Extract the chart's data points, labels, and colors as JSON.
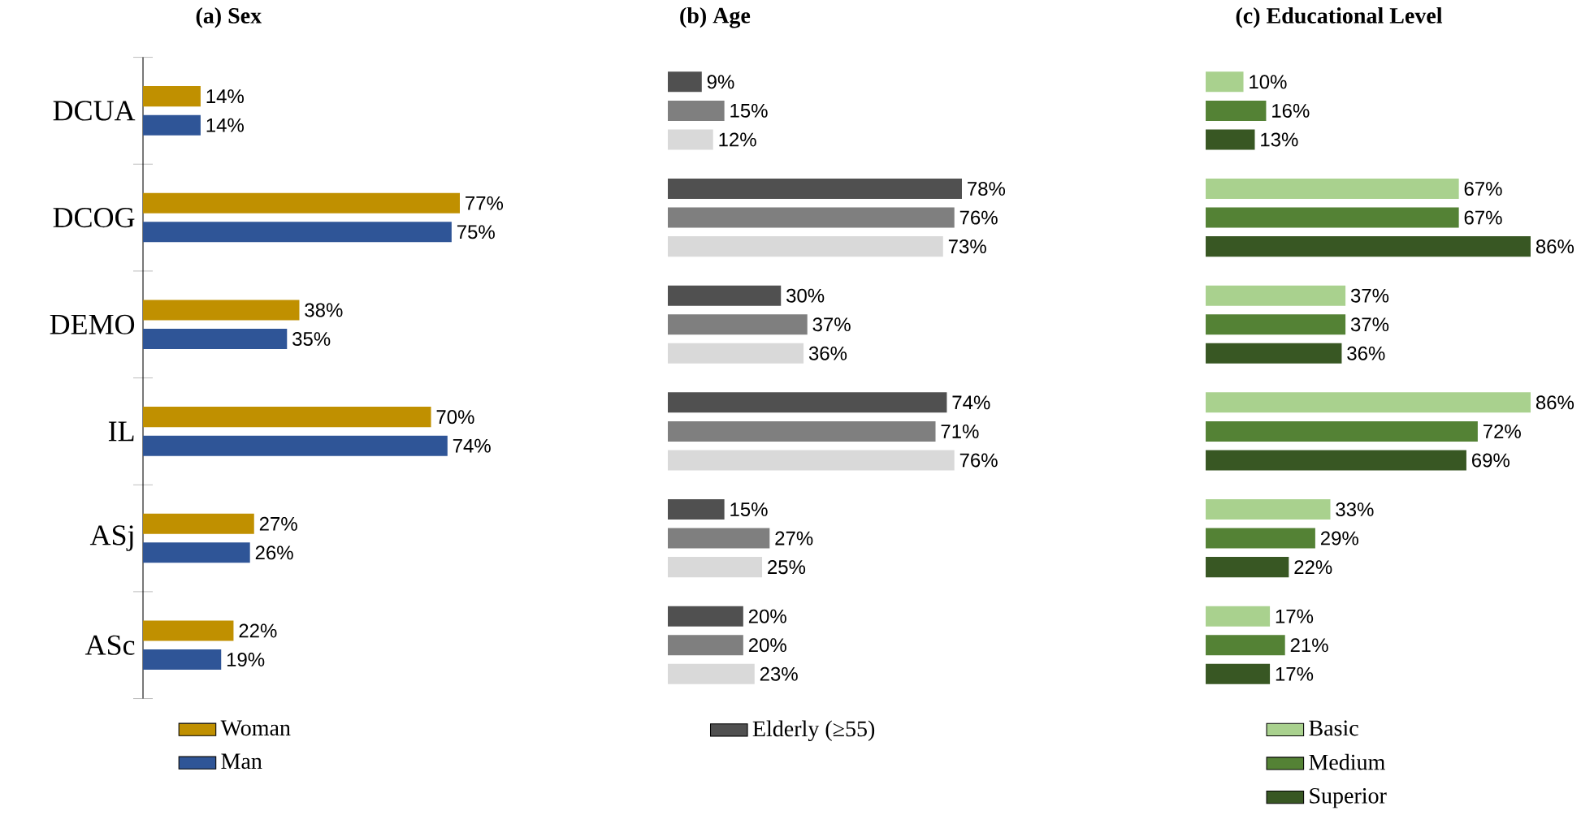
{
  "chart_data": [
    {
      "type": "bar",
      "orientation": "horizontal",
      "title": "(a) Sex",
      "categories": [
        "DCUA",
        "DCOG",
        "DEMO",
        "IL",
        "ASj",
        "ASc"
      ],
      "tick_labels": "y",
      "legend": "bottom",
      "series": [
        {
          "name": "Woman",
          "color": "#c09000",
          "values": [
            14,
            77,
            38,
            70,
            27,
            22
          ],
          "value_labels": [
            "14%",
            "77%",
            "38%",
            "70%",
            "27%",
            "22%"
          ]
        },
        {
          "name": "Man",
          "color": "#2f5597",
          "values": [
            14,
            75,
            35,
            74,
            26,
            19
          ],
          "value_labels": [
            "14%",
            "75%",
            "35%",
            "74%",
            "26%",
            "19%"
          ]
        }
      ]
    },
    {
      "type": "bar",
      "orientation": "horizontal",
      "title": "(b) Age",
      "categories": [
        null,
        null,
        null,
        null,
        null,
        null
      ],
      "tick_labels": false,
      "legend": "bottom",
      "series": [
        {
          "name": "Elderly (≥55)",
          "color": "#505050",
          "values": [
            9,
            78,
            30,
            74,
            15,
            20
          ],
          "value_labels": [
            "9%",
            "78%",
            "30%",
            "74%",
            "15%",
            "20%"
          ]
        },
        {
          "color": "#7f7f7f",
          "values": [
            15,
            76,
            37,
            71,
            27,
            20
          ],
          "value_labels": [
            "15%",
            "76%",
            "37%",
            "71%",
            "27%",
            "20%"
          ]
        },
        {
          "color": "#d9d9d9",
          "values": [
            12,
            73,
            36,
            76,
            25,
            23
          ],
          "value_labels": [
            "12%",
            "73%",
            "36%",
            "76%",
            "25%",
            "23%"
          ]
        }
      ]
    },
    {
      "type": "bar",
      "orientation": "horizontal",
      "title": "(c) Educational Level",
      "categories": [
        null,
        null,
        null,
        null,
        null,
        null
      ],
      "tick_labels": false,
      "legend": "bottom",
      "series": [
        {
          "name": "Basic",
          "color": "#a9d18e",
          "values": [
            10,
            67,
            37,
            86,
            33,
            17
          ],
          "value_labels": [
            "10%",
            "67%",
            "37%",
            "86%",
            "33%",
            "17%"
          ]
        },
        {
          "name": "Medium",
          "color": "#548235",
          "values": [
            16,
            67,
            37,
            72,
            29,
            21
          ],
          "value_labels": [
            "16%",
            "67%",
            "37%",
            "72%",
            "29%",
            "21%"
          ]
        },
        {
          "name": "Superior",
          "color": "#385723",
          "values": [
            13,
            86,
            36,
            69,
            22,
            17
          ],
          "value_labels": [
            "13%",
            "86%",
            "36%",
            "69%",
            "22%",
            "17%"
          ]
        }
      ]
    }
  ]
}
